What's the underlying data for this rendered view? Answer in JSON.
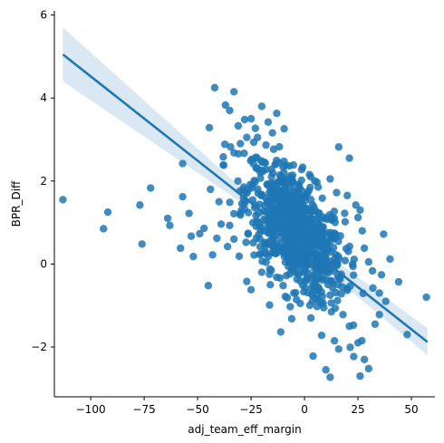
{
  "chart_data": {
    "type": "scatter",
    "title": "",
    "xlabel": "adj_team_eff_margin",
    "ylabel": "BPR_Diff",
    "xlim": [
      -117,
      61
    ],
    "ylim": [
      -3.2,
      6.1
    ],
    "grid": false,
    "legend": "none",
    "x_ticks": [
      -100,
      -75,
      -50,
      -25,
      0,
      25,
      50
    ],
    "x_tick_labels": [
      "−100",
      "−75",
      "−50",
      "−25",
      "0",
      "25",
      "50"
    ],
    "y_ticks": [
      -2,
      0,
      2,
      4,
      6
    ],
    "y_tick_labels": [
      "−2",
      "0",
      "2",
      "4",
      "6"
    ],
    "colors": {
      "points": "#1f77b4",
      "fit_line": "#1f77b4",
      "ci_band": "#1f77b4"
    },
    "regression": {
      "x_start": -113,
      "y_start": 5.05,
      "x_end": 57.5,
      "y_end": -1.88,
      "ci_upper_start": 5.7,
      "ci_lower_start": 4.4,
      "ci_upper_end": -1.55,
      "ci_lower_end": -2.2
    },
    "outliers": [
      [
        -113,
        1.55
      ],
      [
        -92,
        1.25
      ],
      [
        -94,
        0.85
      ],
      [
        -77,
        1.42
      ],
      [
        -76,
        0.48
      ],
      [
        -72,
        1.83
      ],
      [
        -64,
        1.1
      ],
      [
        -63,
        0.93
      ],
      [
        -57,
        1.62
      ],
      [
        -57,
        2.42
      ],
      [
        -58,
        0.38
      ],
      [
        -54,
        1.22
      ],
      [
        -53,
        0.67
      ],
      [
        -52,
        0.18
      ],
      [
        -49,
        0.73
      ],
      [
        -47,
        0.86
      ],
      [
        -45,
        -0.52
      ],
      [
        -44,
        1.8
      ],
      [
        -43,
        0.22
      ],
      [
        -41,
        0.62
      ],
      [
        -40,
        1.5
      ],
      [
        -39,
        0.96
      ],
      [
        -42,
        4.25
      ],
      [
        -37,
        3.83
      ],
      [
        -33,
        4.15
      ],
      [
        -35,
        3.7
      ],
      [
        -31,
        3.33
      ],
      [
        -28,
        3.48
      ],
      [
        -27,
        3.05
      ],
      [
        -25,
        3.5
      ],
      [
        -23,
        3.27
      ],
      [
        -20,
        3.8
      ],
      [
        -22,
        3.05
      ],
      [
        -33,
        2.68
      ],
      [
        -38,
        2.58
      ],
      [
        -30,
        2.9
      ],
      [
        -17,
        3.42
      ],
      [
        -15,
        3.16
      ],
      [
        -13,
        3.63
      ],
      [
        -35,
        0.93
      ],
      [
        -36,
        0.42
      ],
      [
        -33,
        0.6
      ],
      [
        -30,
        1.18
      ],
      [
        -27,
        -0.42
      ],
      [
        -25,
        -0.62
      ],
      [
        -20,
        -0.2
      ],
      [
        -18,
        0.04
      ],
      [
        -16,
        -0.5
      ],
      [
        -13,
        -0.32
      ],
      [
        -10,
        -0.52
      ],
      [
        -5,
        -0.7
      ],
      [
        -6,
        -1.32
      ],
      [
        -2,
        -0.95
      ],
      [
        3,
        -1.3
      ],
      [
        4,
        -2.22
      ],
      [
        8,
        -1.72
      ],
      [
        10,
        -2.55
      ],
      [
        12,
        -2.73
      ],
      [
        14,
        -1.85
      ],
      [
        16,
        -2.05
      ],
      [
        18,
        -1.22
      ],
      [
        21,
        -1.5
      ],
      [
        23,
        -2.23
      ],
      [
        25,
        -1.9
      ],
      [
        26,
        -2.7
      ],
      [
        28,
        -2.3
      ],
      [
        30,
        -2.52
      ],
      [
        33,
        -1.45
      ],
      [
        35,
        -1.22
      ],
      [
        38,
        -0.9
      ],
      [
        32,
        -0.58
      ],
      [
        36,
        -0.26
      ],
      [
        30,
        0.05
      ],
      [
        40,
        0.12
      ],
      [
        44,
        -0.43
      ],
      [
        48,
        -1.7
      ],
      [
        57,
        -0.8
      ],
      [
        37,
        0.72
      ],
      [
        35,
        -0.7
      ],
      [
        28,
        0.38
      ],
      [
        25,
        1.12
      ],
      [
        24,
        1.42
      ],
      [
        27,
        0.8
      ],
      [
        20,
        1.65
      ],
      [
        21,
        2.55
      ],
      [
        16,
        2.82
      ],
      [
        12,
        2.05
      ],
      [
        15,
        1.72
      ],
      [
        26,
        1.3
      ]
    ],
    "cloud": {
      "n_points": 820,
      "center_x": -4.5,
      "center_y": 0.82,
      "sd_x": 11.5,
      "slope": -0.042,
      "sd_y_resid": 0.68,
      "seed": 12345
    }
  }
}
